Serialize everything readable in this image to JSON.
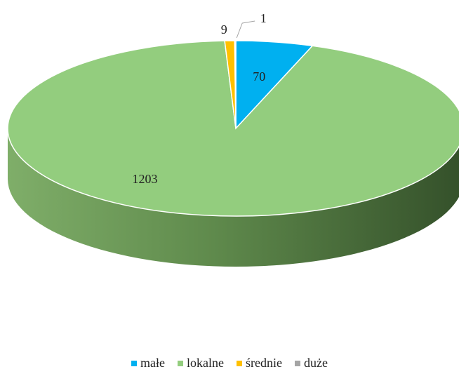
{
  "chart_data": {
    "type": "pie3d",
    "categories": [
      "małe",
      "lokalne",
      "średnie",
      "duże"
    ],
    "values": [
      70,
      1203,
      9,
      1
    ],
    "colors": [
      "#00b0f0",
      "#93cd7e",
      "#ffc000",
      "#a5a5a5"
    ],
    "legend": "bottom"
  }
}
